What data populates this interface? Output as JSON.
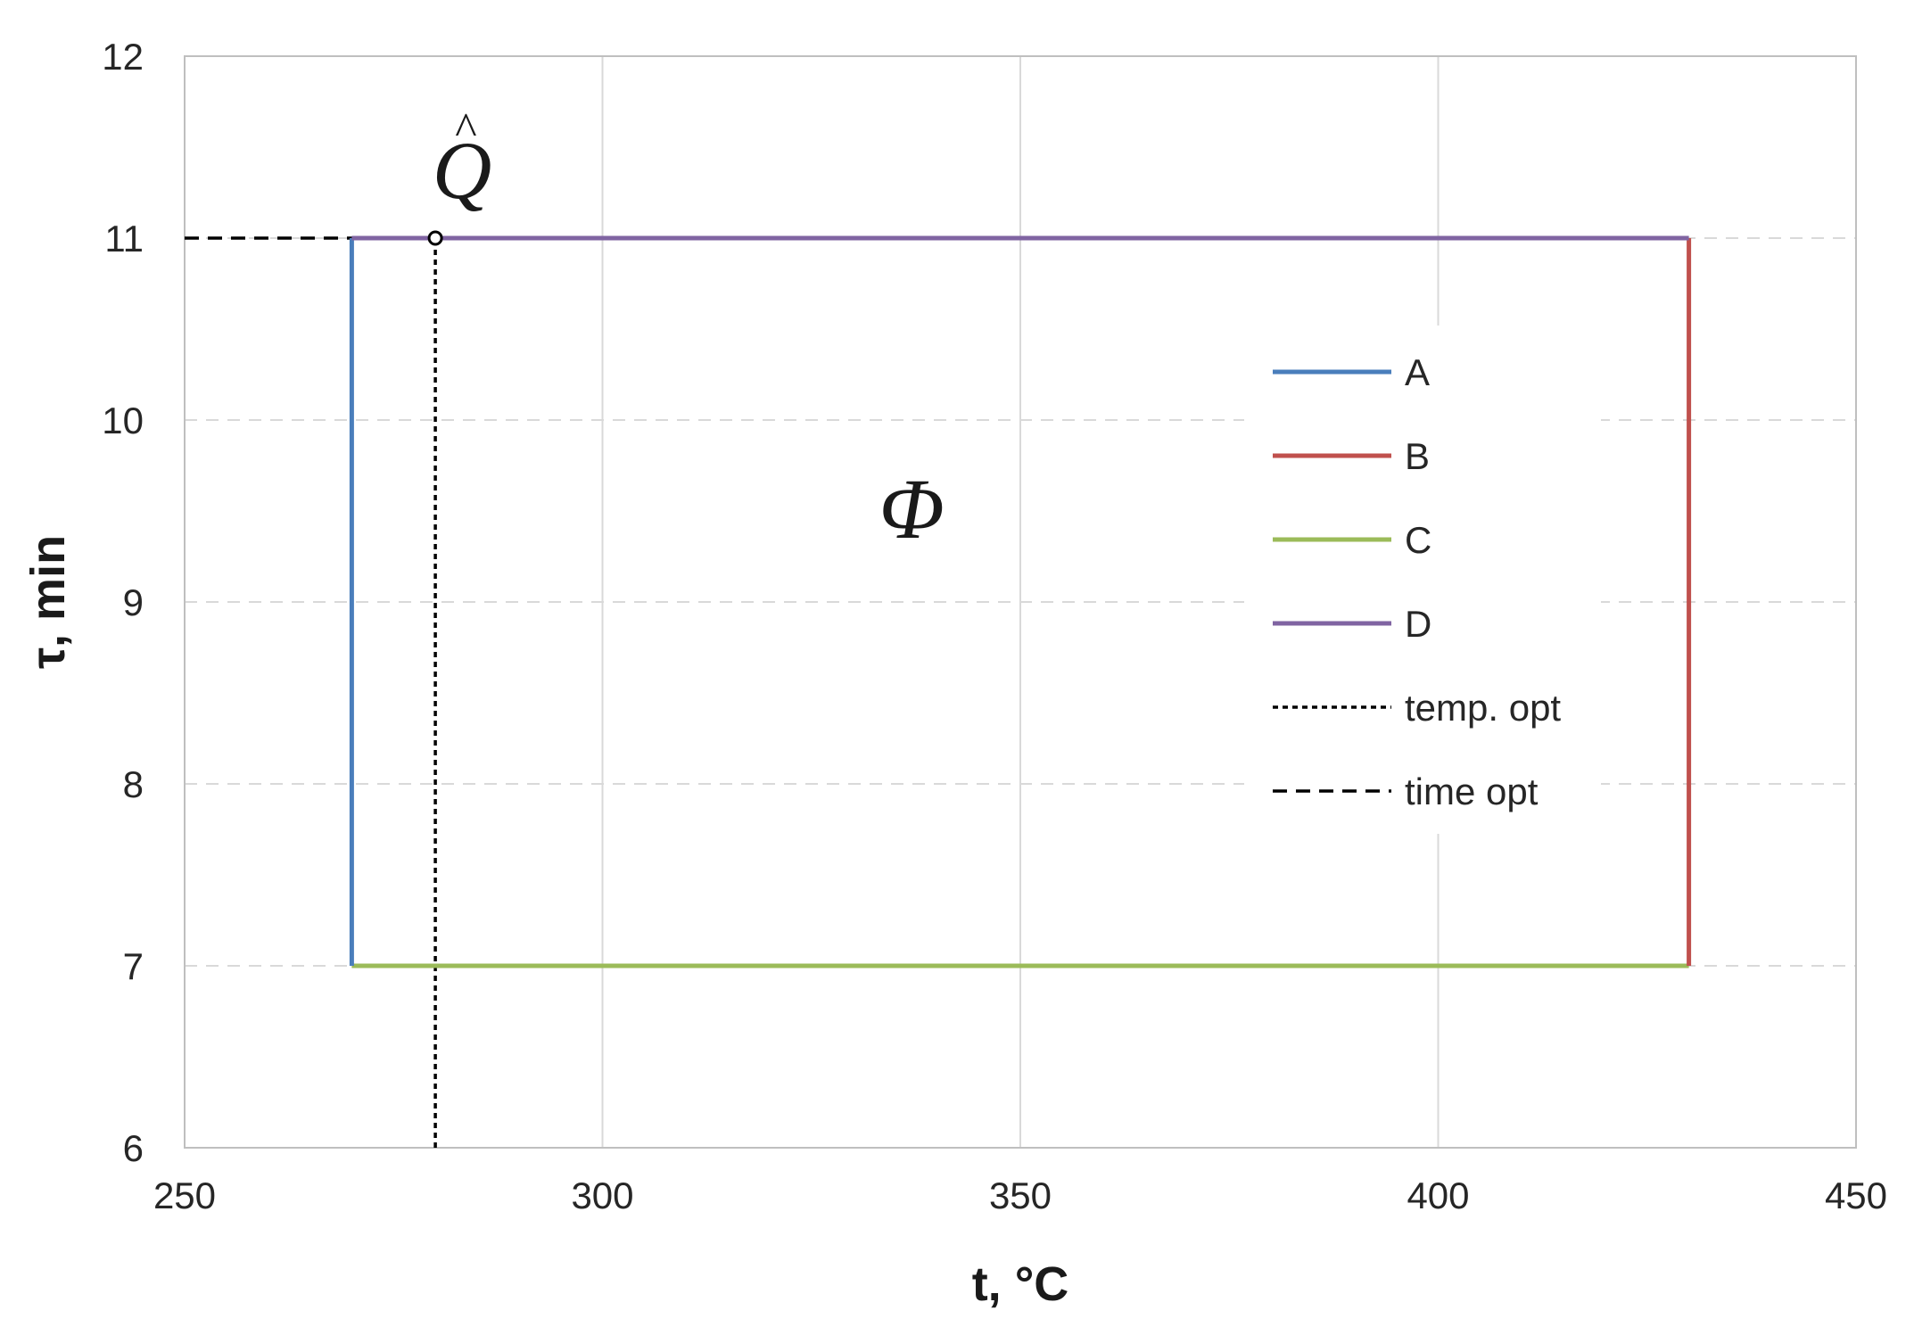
{
  "chart_data": {
    "type": "line",
    "xlabel": "t, °C",
    "ylabel": "τ, min",
    "xlim": [
      250,
      450
    ],
    "ylim": [
      6,
      12
    ],
    "xticks": [
      250,
      300,
      350,
      400,
      450
    ],
    "yticks": [
      6,
      7,
      8,
      9,
      10,
      11,
      12
    ],
    "grid": true,
    "legend_position": "right",
    "series": [
      {
        "name": "A",
        "color": "#4a7ebb",
        "style": "solid",
        "x": [
          270,
          270
        ],
        "y": [
          7,
          11
        ]
      },
      {
        "name": "B",
        "color": "#c0504d",
        "style": "solid",
        "x": [
          430,
          430
        ],
        "y": [
          7,
          11
        ]
      },
      {
        "name": "C",
        "color": "#9bbb59",
        "style": "solid",
        "x": [
          270,
          430
        ],
        "y": [
          7,
          7
        ]
      },
      {
        "name": "D",
        "color": "#8064a2",
        "style": "solid",
        "x": [
          270,
          430
        ],
        "y": [
          11,
          11
        ]
      },
      {
        "name": "temp. opt",
        "color": "#000000",
        "style": "dotted",
        "x": [
          280,
          280
        ],
        "y": [
          6,
          11
        ]
      },
      {
        "name": "time opt",
        "color": "#000000",
        "style": "dashed",
        "x": [
          250,
          280
        ],
        "y": [
          11,
          11
        ]
      }
    ],
    "annotations": [
      {
        "text": "Q",
        "hat": "^",
        "x": 280,
        "y": 11,
        "marker": "open-circle"
      },
      {
        "text": "Φ",
        "x": 337,
        "y": 9.5
      }
    ]
  }
}
